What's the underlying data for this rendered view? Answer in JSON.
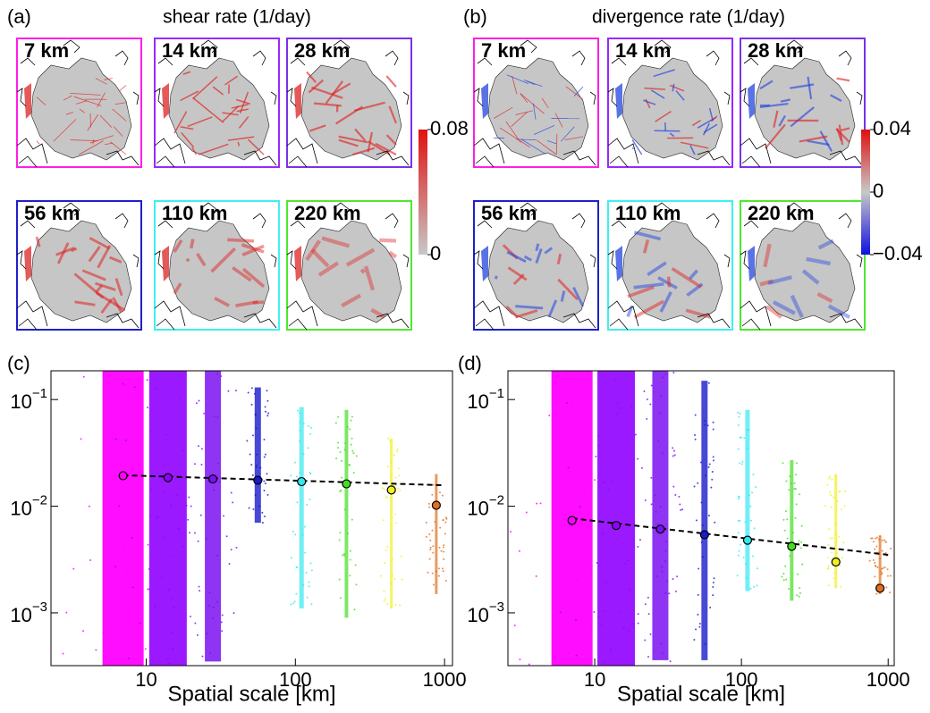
{
  "scales": [
    {
      "name": "7 km",
      "color": "#ff1ee6"
    },
    {
      "name": "14 km",
      "color": "#9a28ff"
    },
    {
      "name": "28 km",
      "color": "#7a30e8"
    },
    {
      "name": "56 km",
      "color": "#2020c8"
    },
    {
      "name": "110 km",
      "color": "#3ef0f0"
    },
    {
      "name": "220 km",
      "color": "#4ee830"
    }
  ],
  "panels": [
    {
      "label": "(a)",
      "title": "shear rate (1/day)",
      "colorbar": {
        "lim": [
          0,
          0.08
        ],
        "ticks": [
          0.08,
          0
        ],
        "colors": [
          "#e01010",
          "#c8c8c8"
        ]
      }
    },
    {
      "label": "(b)",
      "title": "divergence rate (1/day)",
      "colorbar": {
        "lim": [
          -0.04,
          0.04
        ],
        "ticks": [
          0.04,
          0,
          {
            "value": -0.04,
            "label": "−0.04"
          }
        ],
        "colors": [
          "#e01010",
          "#c8c8c8",
          "#1010e0"
        ]
      }
    }
  ],
  "chart_data": [
    {
      "type": "scatter",
      "label": "(c)",
      "xlabel": "Spatial scale [km]",
      "log": true,
      "xlim": [
        2.3,
        1130
      ],
      "ylim": [
        0.00032,
        0.186
      ],
      "xticks": [
        10,
        100,
        1000
      ],
      "yticks": [
        {
          "value": 0.1,
          "label": "10",
          "exponent": "−1"
        },
        {
          "value": 0.01,
          "label": "10",
          "exponent": "−2"
        },
        {
          "value": 0.001,
          "label": "10",
          "exponent": "−3"
        }
      ],
      "x": [
        7,
        14,
        28,
        56,
        110,
        220,
        440,
        880
      ],
      "colors": [
        "#ff00ff",
        "#9000ff",
        "#7a10f0",
        "#1a1acc",
        "#33e8f0",
        "#44dd22",
        "#f0f020",
        "#e07020"
      ],
      "low": [
        0.00032,
        0.00032,
        0.00035,
        0.007,
        0.0011,
        0.0009,
        0.0011,
        0.0015
      ],
      "high": [
        0.186,
        0.186,
        0.186,
        0.13,
        0.085,
        0.08,
        0.043,
        0.02
      ],
      "values": [
        0.0193,
        0.0185,
        0.018,
        0.0175,
        0.017,
        0.0162,
        0.0142,
        0.0102
      ],
      "fit": {
        "x": [
          7,
          1000
        ],
        "y": [
          0.0195,
          0.0157
        ]
      }
    },
    {
      "type": "scatter",
      "label": "(d)",
      "xlabel": "Spatial scale [km]",
      "log": true,
      "xlim": [
        2.56,
        1100
      ],
      "ylim": [
        0.00032,
        0.186
      ],
      "xticks": [
        10,
        100,
        1000
      ],
      "yticks": [
        {
          "value": 0.1,
          "label": "10",
          "exponent": "−1"
        },
        {
          "value": 0.01,
          "label": "10",
          "exponent": "−2"
        },
        {
          "value": 0.001,
          "label": "10",
          "exponent": "−3"
        }
      ],
      "x": [
        7,
        14,
        28,
        56,
        110,
        220,
        440,
        880
      ],
      "colors": [
        "#ff00ff",
        "#9000ff",
        "#7a10f0",
        "#1a1acc",
        "#33e8f0",
        "#44dd22",
        "#f0f020",
        "#e07020"
      ],
      "low": [
        0.00032,
        0.00032,
        0.00036,
        0.00036,
        0.0016,
        0.0013,
        0.0017,
        0.0015
      ],
      "high": [
        0.186,
        0.186,
        0.186,
        0.15,
        0.08,
        0.027,
        0.02,
        0.0053
      ],
      "values": [
        0.00735,
        0.0066,
        0.0061,
        0.0054,
        0.0048,
        0.0042,
        0.003,
        0.0017
      ],
      "fit": {
        "x": [
          7,
          1000
        ],
        "y": [
          0.0077,
          0.0035
        ]
      }
    }
  ]
}
